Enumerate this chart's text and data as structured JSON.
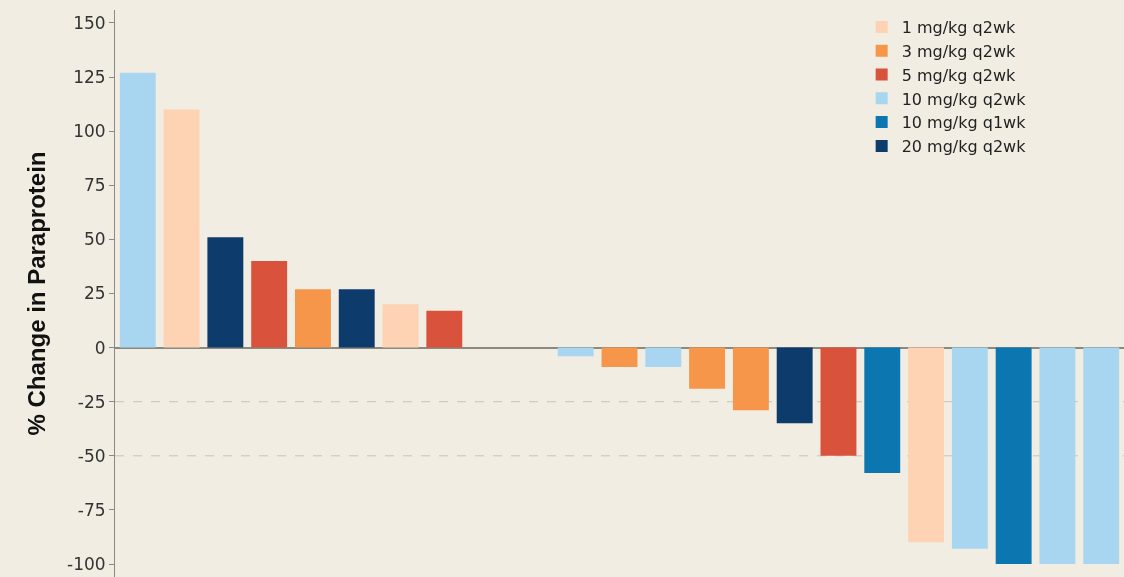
{
  "chart_data": {
    "type": "bar",
    "ylabel": "% Change in Paraprotein",
    "categories": [
      null,
      null,
      null,
      null,
      null,
      null,
      null,
      null,
      null,
      null,
      null,
      null,
      null,
      null,
      null,
      null,
      null,
      null,
      null,
      null,
      null,
      null,
      null
    ],
    "series": [
      {
        "name": "1 mg/kg q2wk",
        "color": "#fdd3b3",
        "values": [
          null,
          110,
          null,
          null,
          null,
          null,
          20,
          null,
          null,
          null,
          null,
          null,
          null,
          null,
          null,
          null,
          null,
          null,
          -90,
          null,
          null,
          null,
          null
        ]
      },
      {
        "name": "3 mg/kg q2wk",
        "color": "#f5964a",
        "values": [
          null,
          null,
          null,
          null,
          27,
          null,
          null,
          null,
          null,
          null,
          null,
          -9,
          null,
          -19,
          -29,
          null,
          null,
          null,
          null,
          null,
          null,
          null,
          null
        ]
      },
      {
        "name": "5 mg/kg q2wk",
        "color": "#d9523b",
        "values": [
          null,
          null,
          null,
          40,
          null,
          null,
          null,
          17,
          null,
          null,
          null,
          null,
          null,
          null,
          null,
          null,
          -50,
          null,
          null,
          null,
          null,
          null,
          null
        ]
      },
      {
        "name": "10 mg/kg q2wk",
        "color": "#a8d6f0",
        "values": [
          127,
          null,
          null,
          null,
          null,
          null,
          null,
          null,
          null,
          null,
          -4,
          null,
          -9,
          null,
          null,
          null,
          null,
          null,
          null,
          -93,
          null,
          -100,
          -100
        ]
      },
      {
        "name": "10 mg/kg q1wk",
        "color": "#0b76b0",
        "values": [
          null,
          null,
          null,
          null,
          null,
          null,
          null,
          null,
          null,
          null,
          null,
          null,
          null,
          null,
          null,
          null,
          null,
          -58,
          null,
          null,
          -100,
          null,
          null
        ]
      },
      {
        "name": "20 mg/kg q2wk",
        "color": "#0c3b6c",
        "values": [
          null,
          null,
          51,
          null,
          null,
          27,
          null,
          null,
          null,
          null,
          null,
          null,
          null,
          null,
          null,
          -35,
          null,
          null,
          null,
          null,
          null,
          null,
          null
        ]
      }
    ],
    "ylim": [
      -106,
      156
    ],
    "yticks": [
      -100,
      -75,
      -50,
      -25,
      0,
      25,
      50,
      75,
      100,
      125,
      150
    ],
    "ref_lines": [
      {
        "axis": "y",
        "value": -25,
        "color": "#c8c4b8",
        "line_style": "dashed"
      },
      {
        "axis": "y",
        "value": -50,
        "color": "#c8c4b8",
        "line_style": "dashed"
      }
    ],
    "grid": false,
    "legend": "top right",
    "tick_labels": "y"
  }
}
